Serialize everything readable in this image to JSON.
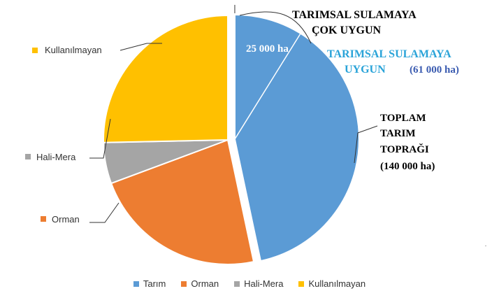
{
  "chart_data": {
    "type": "pie",
    "categories": [
      "Tarım",
      "Orman",
      "Hali-Mera",
      "Kullanılmayan"
    ],
    "values": [
      140000,
      68000,
      16000,
      76000
    ],
    "colors": [
      "#5b9bd5",
      "#ed7d31",
      "#a5a5a5",
      "#ffc000"
    ],
    "legend": "bottom",
    "annotations": {
      "very_suitable_title": "TARIMSAL SULAMAYA ÇOK UYGUN",
      "very_suitable_value": "25 000 ha",
      "suitable_title": "TARIMSAL SULAMAYA UYGUN",
      "suitable_value": "(61 000 ha)",
      "total_line1": "TOPLAM",
      "total_line2": "TARIM",
      "total_line3": "TOPRAĞI",
      "total_value": "(140 000 ha)"
    }
  }
}
